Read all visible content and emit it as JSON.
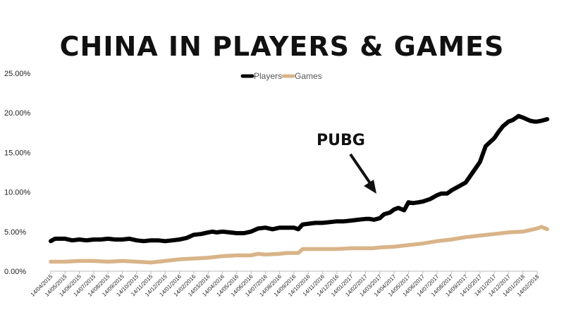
{
  "chart_data": {
    "type": "line",
    "title": "CHINA IN PLAYERS & GAMES",
    "xlabel": "",
    "ylabel": "",
    "ylim": [
      0,
      25
    ],
    "y_ticks": [
      "0.00%",
      "5.00%",
      "10.00%",
      "15.00%",
      "20.00%",
      "25.00%"
    ],
    "x_ticks": [
      "14/04/2015",
      "14/05/2015",
      "14/06/2015",
      "14/07/2015",
      "14/08/2015",
      "14/09/2015",
      "14/10/2015",
      "14/11/2015",
      "14/12/2015",
      "14/01/2016",
      "14/02/2016",
      "14/03/2016",
      "14/04/2016",
      "14/05/2016",
      "14/06/2016",
      "14/07/2016",
      "14/08/2016",
      "14/09/2016",
      "14/10/2016",
      "14/11/2016",
      "14/12/2016",
      "14/01/2017",
      "14/02/2017",
      "14/03/2017",
      "14/04/2017",
      "14/05/2017",
      "14/06/2017",
      "14/07/2017",
      "14/08/2017",
      "14/09/2017",
      "14/10/2017",
      "14/11/2017",
      "14/12/2017",
      "14/01/2018",
      "14/02/2018"
    ],
    "grid": false,
    "legend_position": "top-center",
    "series": [
      {
        "name": "Players",
        "color": "#000000",
        "x": [
          0,
          0.3,
          1,
          1.5,
          2,
          2.5,
          3,
          3.5,
          4,
          4.5,
          5,
          5.5,
          6,
          6.5,
          7,
          7.5,
          8,
          8.5,
          9,
          9.5,
          10,
          10.5,
          11,
          11.3,
          11.6,
          12,
          12.5,
          13,
          13.5,
          14,
          14.5,
          15,
          15.5,
          16,
          16.5,
          17,
          17.3,
          17.6,
          18,
          18.5,
          19,
          19.5,
          20,
          20.5,
          21,
          21.5,
          22,
          22.3,
          22.6,
          23,
          23.3,
          23.7,
          24,
          24.3,
          24.7,
          25,
          25.3,
          25.7,
          26,
          26.5,
          27,
          27.3,
          27.7,
          28,
          28.5,
          28.8,
          29,
          29.5,
          30,
          30.4,
          30.7,
          31,
          31.3,
          31.6,
          32,
          32.3,
          32.7,
          33,
          33.5,
          33.8,
          34,
          34.3,
          34.7
        ],
        "y": [
          3.8,
          4.1,
          4.1,
          3.9,
          4.0,
          3.9,
          4.0,
          4.0,
          4.1,
          4.0,
          4.0,
          4.1,
          3.9,
          3.8,
          3.9,
          3.9,
          3.8,
          3.9,
          4.0,
          4.2,
          4.6,
          4.7,
          4.9,
          5.0,
          4.9,
          5.0,
          4.9,
          4.8,
          4.8,
          5.0,
          5.4,
          5.5,
          5.3,
          5.5,
          5.5,
          5.5,
          5.3,
          5.9,
          6.0,
          6.1,
          6.1,
          6.2,
          6.3,
          6.3,
          6.4,
          6.5,
          6.6,
          6.6,
          6.5,
          6.7,
          7.2,
          7.4,
          7.8,
          8.0,
          7.7,
          8.7,
          8.6,
          8.7,
          8.8,
          9.1,
          9.6,
          9.8,
          9.8,
          10.2,
          10.7,
          11.0,
          11.2,
          12.5,
          13.8,
          15.8,
          16.3,
          16.8,
          17.6,
          18.3,
          18.9,
          19.1,
          19.6,
          19.4,
          19.0,
          18.9,
          18.9,
          19.0,
          19.2
        ]
      },
      {
        "name": "Games",
        "color": "#d9b489",
        "x": [
          0,
          1,
          2,
          3,
          4,
          5,
          6,
          7,
          7.5,
          8,
          9,
          10,
          11,
          12,
          13,
          14,
          14.5,
          15,
          16,
          16.5,
          17,
          17.3,
          17.6,
          18,
          19,
          20,
          21,
          22,
          22.5,
          23,
          24,
          25,
          25.5,
          26,
          27,
          28,
          29,
          30,
          31,
          32,
          33,
          33.5,
          34,
          34.3,
          34.7
        ],
        "y": [
          1.2,
          1.2,
          1.3,
          1.3,
          1.2,
          1.3,
          1.2,
          1.1,
          1.2,
          1.3,
          1.5,
          1.6,
          1.7,
          1.9,
          2.0,
          2.0,
          2.2,
          2.1,
          2.2,
          2.3,
          2.3,
          2.3,
          2.8,
          2.8,
          2.8,
          2.8,
          2.9,
          2.9,
          2.9,
          3.0,
          3.1,
          3.3,
          3.4,
          3.5,
          3.8,
          4.0,
          4.3,
          4.5,
          4.7,
          4.9,
          5.0,
          5.2,
          5.4,
          5.6,
          5.3
        ]
      }
    ],
    "annotations": [
      {
        "text": "PUBG"
      }
    ]
  }
}
